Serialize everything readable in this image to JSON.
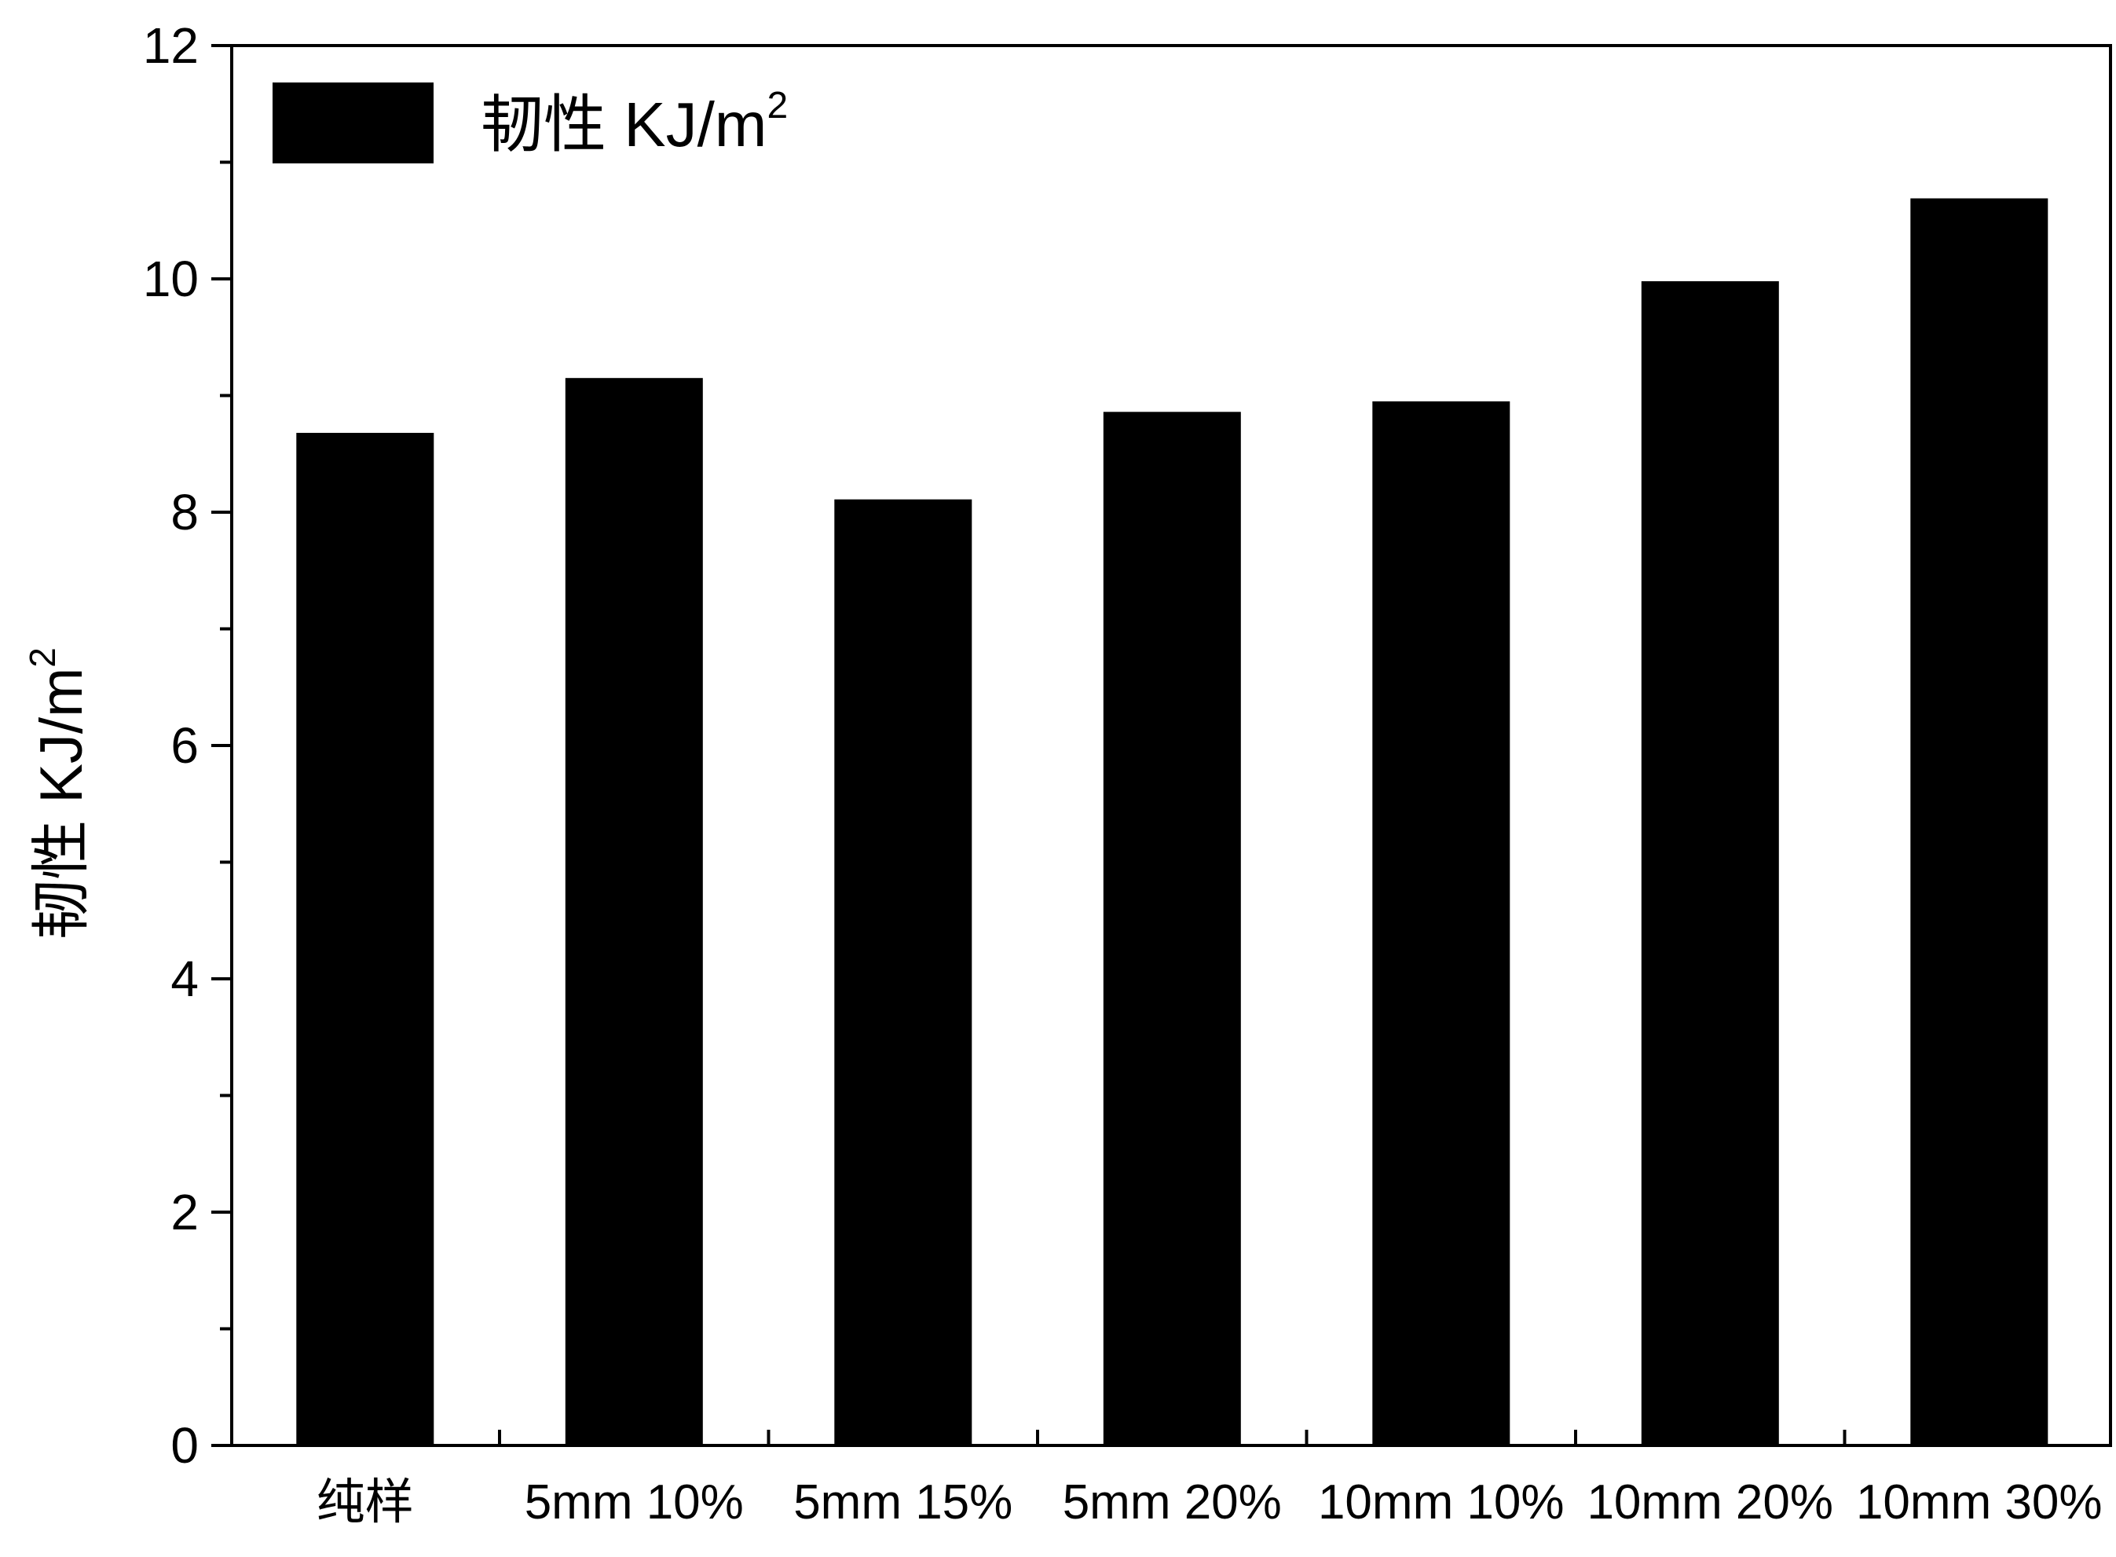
{
  "chart_data": {
    "type": "bar",
    "categories": [
      "纯样",
      "5mm 10%",
      "5mm 15%",
      "5mm 20%",
      "10mm 10%",
      "10mm 20%",
      "10mm 30%"
    ],
    "series": [
      {
        "name": "韧性 KJ/m²",
        "values": [
          8.68,
          9.15,
          8.11,
          8.86,
          8.95,
          9.98,
          10.69
        ]
      }
    ],
    "ylabel": "韧性 KJ/m²",
    "xlabel": "",
    "title": "",
    "ylim": [
      0,
      12
    ],
    "yticks": [
      0,
      2,
      4,
      6,
      8,
      10,
      12
    ],
    "yticks_labels": [
      "0",
      "2",
      "4",
      "6",
      "8",
      "10",
      "12"
    ],
    "grid": false,
    "legend_position": "top-left",
    "colors": {
      "bar": "#000000",
      "axis": "#000000",
      "background": "#ffffff"
    }
  },
  "legend": {
    "label_main": "韧性 KJ/m",
    "label_sup": "2"
  },
  "y_axis_title": {
    "main": "韧性 KJ/m",
    "sup": "2"
  }
}
